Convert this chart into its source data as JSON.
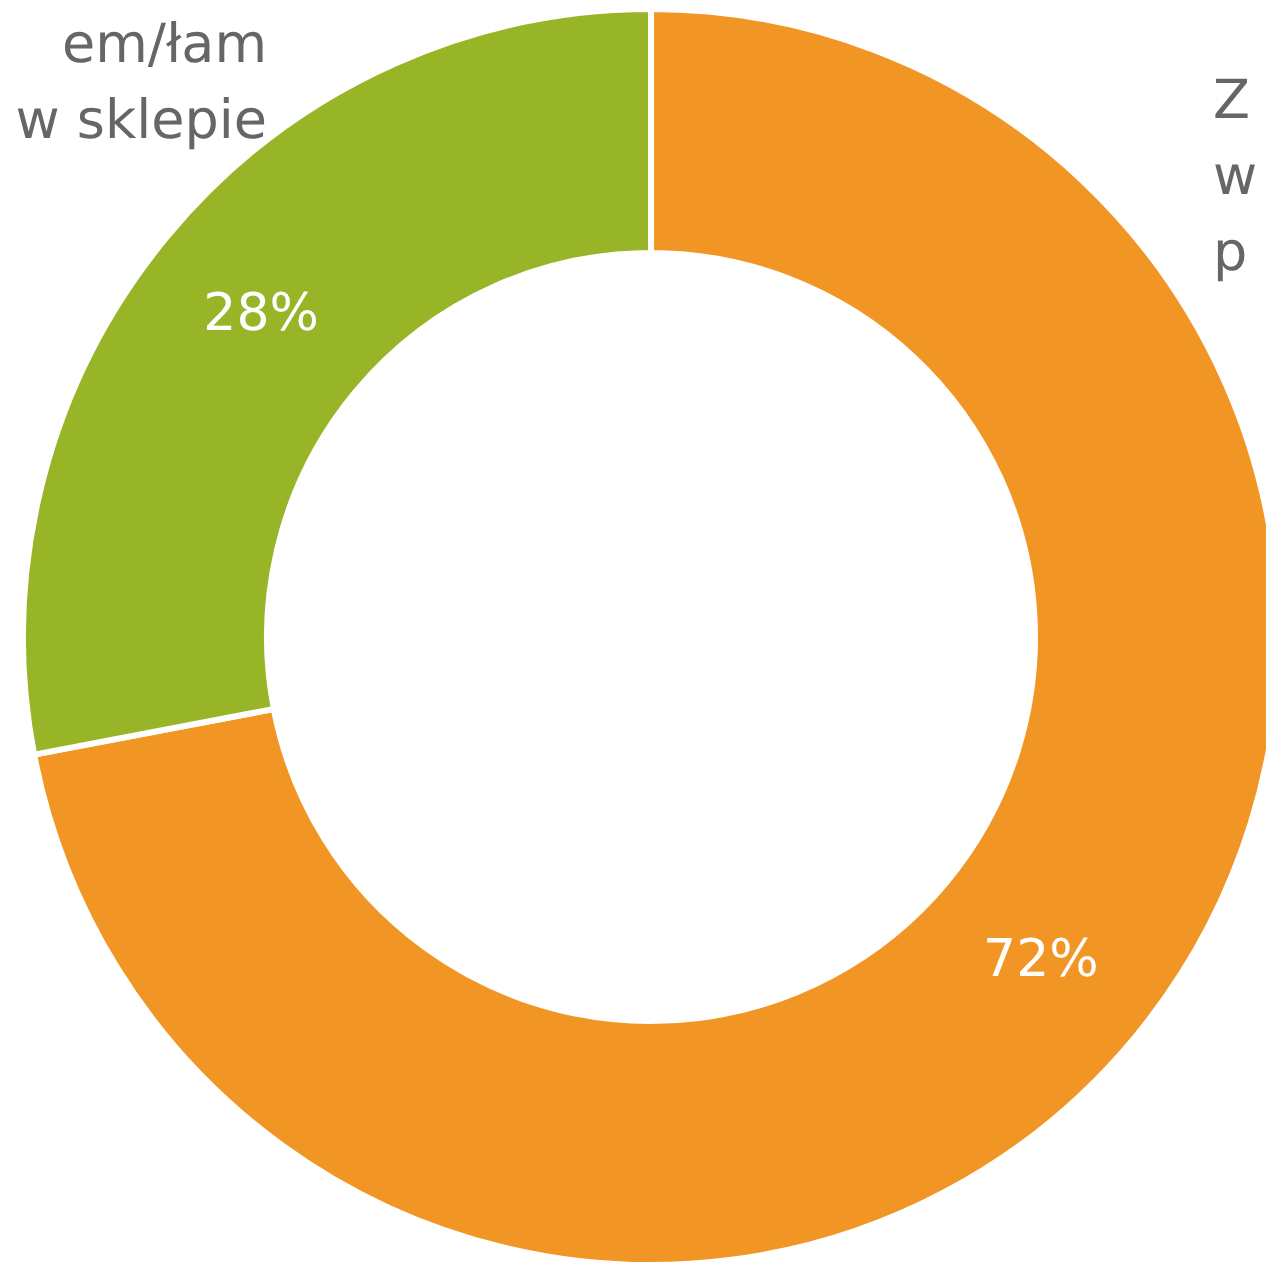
{
  "chart_data": {
    "type": "donut",
    "categories": [
      "Z\nw\np",
      "em/łam\nw sklepie"
    ],
    "values": [
      72,
      28
    ],
    "colors": [
      "#f19624",
      "#97b526"
    ],
    "value_labels": [
      "72%",
      "28%"
    ]
  }
}
